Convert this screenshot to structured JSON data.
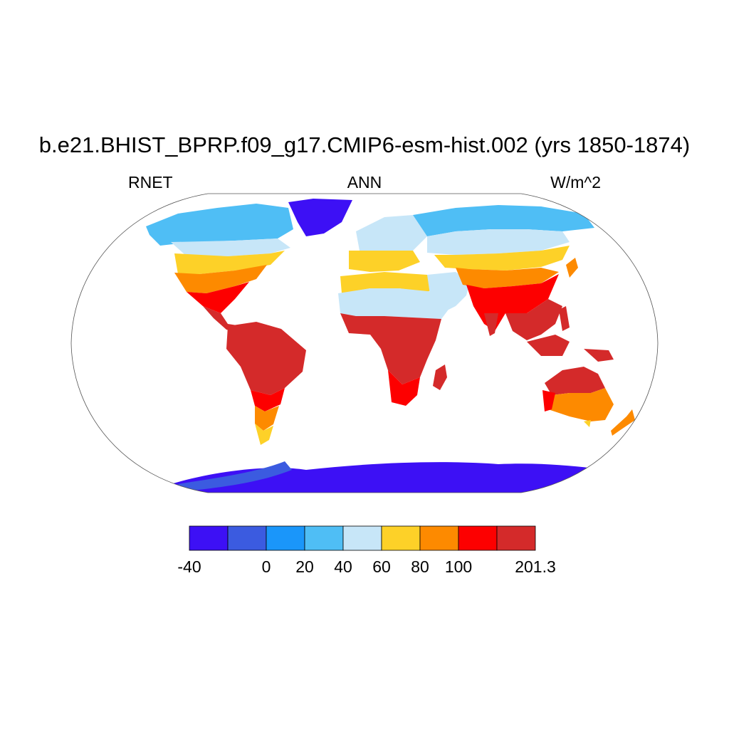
{
  "title": "b.e21.BHIST_BPRP.f09_g17.CMIP6-esm-hist.002 (yrs 1850-1874)",
  "left_label": "RNET",
  "center_label": "ANN",
  "right_label": "W/m^2",
  "chart_data": {
    "type": "heatmap",
    "projection": "robinson",
    "title": "b.e21.BHIST_BPRP.f09_g17.CMIP6-esm-hist.002 (yrs 1850-1874)",
    "variable": "RNET",
    "season": "ANN",
    "units": "W/m^2",
    "colorbar": {
      "levels": [
        -40,
        -20,
        0,
        20,
        40,
        60,
        80,
        100,
        120,
        201.3
      ],
      "colors": [
        "#3d10f5",
        "#3b5be0",
        "#1a96fa",
        "#4fbef5",
        "#c7e6f8",
        "#fdd128",
        "#fd8a00",
        "#fd0000",
        "#d42a2a"
      ],
      "tick_labels": [
        {
          "label": "-40",
          "value": -40
        },
        {
          "label": "0",
          "value": 0
        },
        {
          "label": "20",
          "value": 20
        },
        {
          "label": "40",
          "value": 40
        },
        {
          "label": "60",
          "value": 60
        },
        {
          "label": "80",
          "value": 80
        },
        {
          "label": "100",
          "value": 100
        },
        {
          "label": "201.3",
          "value": 201.3
        }
      ]
    }
  }
}
